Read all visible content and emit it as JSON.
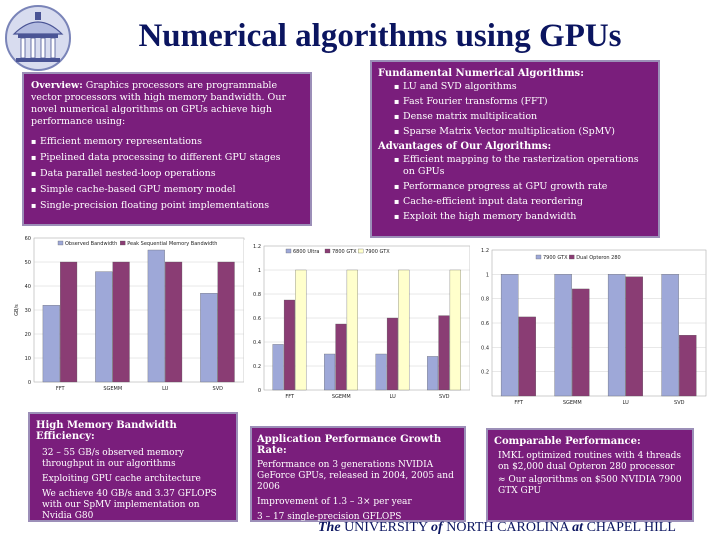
{
  "title": "Numerical algorithms using GPUs",
  "footer": {
    "the": "The",
    "university": "UNIVERSITY",
    "of": "of",
    "nc": "NORTH CAROLINA",
    "at": "at",
    "ch": "CHAPEL HILL"
  },
  "overview": {
    "lead": "Overview:",
    "text": "Graphics processors are programmable vector processors with high memory bandwidth. Our novel numerical algorithms on GPUs achieve high performance using:",
    "items": [
      "Efficient memory representations",
      "Pipelined data processing to different GPU stages",
      "Data parallel nested-loop operations",
      "Simple cache-based GPU memory model",
      "Single-precision floating point implementations"
    ]
  },
  "fundamental": {
    "heading1": "Fundamental Numerical Algorithms:",
    "items1": [
      "LU and SVD algorithms",
      "Fast Fourier transforms (FFT)",
      "Dense matrix multiplication",
      "Sparse Matrix Vector multiplication (SpMV)"
    ],
    "heading2": "Advantages of Our Algorithms:",
    "items2": [
      "Efficient mapping to the rasterization operations on GPUs",
      "Performance progress at GPU growth rate",
      "Cache-efficient input data reordering",
      "Exploit the high memory bandwidth"
    ]
  },
  "hmb": {
    "heading": "High Memory Bandwidth Efficiency:",
    "lines": [
      "32 – 55 GB/s observed memory throughput in our algorithms",
      "Exploiting GPU cache architecture",
      "We achieve 40 GB/s and 3.37 GFLOPS with our SpMV implementation on Nvidia G80"
    ]
  },
  "apg": {
    "heading": "Application Performance Growth Rate:",
    "lines": [
      "Performance on 3 generations NVIDIA GeForce GPUs, released in 2004, 2005 and 2006",
      "Improvement of 1.3 – 3× per year",
      "3 – 17 single-precision GFLOPS"
    ]
  },
  "cmp": {
    "heading": "Comparable Performance:",
    "lines": [
      "IMKL optimized routines with 4 threads on $2,000 dual Opteron 280 processor",
      "≈ Our algorithms on $500 NVIDIA 7900 GTX GPU"
    ]
  },
  "chart_data": [
    {
      "type": "bar",
      "categories": [
        "FFT",
        "SGEMM",
        "LU",
        "SVD"
      ],
      "ylabel": "GB/s",
      "ylim": [
        0,
        60
      ],
      "yticks": [
        0,
        10,
        20,
        30,
        40,
        50,
        60
      ],
      "colors": [
        "#9ea8d8",
        "#8a3d74"
      ],
      "series": [
        {
          "name": "Observed Bandwidth",
          "values": [
            32,
            46,
            55,
            37
          ]
        },
        {
          "name": "Peak Sequential Memory Bandwidth",
          "values": [
            50,
            50,
            50,
            50
          ]
        }
      ]
    },
    {
      "type": "bar",
      "categories": [
        "FFT",
        "SGEMM",
        "LU",
        "SVD"
      ],
      "ylim": [
        0,
        1.2
      ],
      "yticks": [
        0,
        0.2,
        0.4,
        0.6,
        0.8,
        1,
        1.2
      ],
      "colors": [
        "#9ea8d8",
        "#8a3d74",
        "#ffffcc"
      ],
      "series": [
        {
          "name": "6800 Ultra",
          "values": [
            0.38,
            0.3,
            0.3,
            0.28
          ]
        },
        {
          "name": "7800 GTX",
          "values": [
            0.75,
            0.55,
            0.6,
            0.62
          ]
        },
        {
          "name": "7900 GTX",
          "values": [
            1,
            1,
            1,
            1
          ]
        }
      ]
    },
    {
      "type": "bar",
      "categories": [
        "FFT",
        "SGEMM",
        "LU",
        "SVD"
      ],
      "ylim": [
        0,
        1.2
      ],
      "yticks": [
        0.2,
        0.4,
        0.6,
        0.8,
        1,
        1.2
      ],
      "colors": [
        "#9ea8d8",
        "#8a3d74"
      ],
      "series": [
        {
          "name": "7900 GTX",
          "values": [
            1,
            1,
            1,
            1
          ]
        },
        {
          "name": "Dual Opteron 280",
          "values": [
            0.65,
            0.88,
            0.98,
            0.5
          ]
        }
      ]
    }
  ]
}
